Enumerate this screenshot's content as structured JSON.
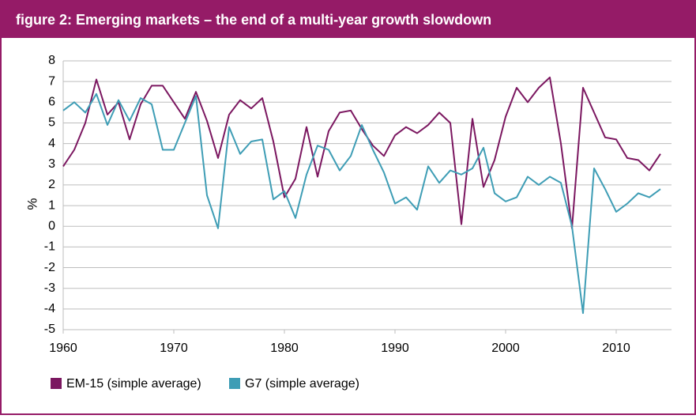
{
  "chart_data": {
    "type": "line",
    "title": "figure 2: Emerging markets – the end of a multi-year growth slowdown",
    "y_label": "%",
    "x": [
      1960,
      1961,
      1962,
      1963,
      1964,
      1965,
      1966,
      1967,
      1968,
      1969,
      1970,
      1971,
      1972,
      1973,
      1974,
      1975,
      1976,
      1977,
      1978,
      1979,
      1980,
      1981,
      1982,
      1983,
      1984,
      1985,
      1986,
      1987,
      1988,
      1989,
      1990,
      1991,
      1992,
      1993,
      1994,
      1995,
      1996,
      1997,
      1998,
      1999,
      2000,
      2001,
      2002,
      2003,
      2004,
      2005,
      2006,
      2007,
      2008,
      2009,
      2010,
      2011,
      2012,
      2013,
      2014
    ],
    "series": [
      {
        "name": "EM-15 (simple average)",
        "color": "#7b1760",
        "values": [
          2.9,
          3.7,
          5.0,
          7.1,
          5.4,
          6.0,
          4.2,
          5.9,
          6.8,
          6.8,
          6.0,
          5.2,
          6.5,
          5.1,
          3.3,
          5.4,
          6.1,
          5.7,
          6.2,
          4.1,
          1.4,
          2.3,
          4.8,
          2.4,
          4.6,
          5.5,
          5.6,
          4.7,
          3.9,
          3.4,
          4.4,
          4.8,
          4.5,
          4.9,
          5.5,
          5.0,
          0.1,
          5.2,
          1.9,
          3.2,
          5.3,
          6.7,
          6.0,
          6.7,
          7.2,
          4.0,
          -0.1,
          6.7,
          5.5,
          4.3,
          4.2,
          3.3,
          3.2,
          2.7,
          3.5
        ]
      },
      {
        "name": "G7 (simple average)",
        "color": "#3e9db5",
        "values": [
          5.6,
          6.0,
          5.5,
          6.4,
          4.9,
          6.1,
          5.1,
          6.2,
          5.9,
          3.7,
          3.7,
          5.0,
          6.3,
          1.5,
          -0.1,
          4.8,
          3.5,
          4.1,
          4.2,
          1.3,
          1.7,
          0.4,
          2.5,
          3.9,
          3.7,
          2.7,
          3.4,
          4.9,
          3.7,
          2.6,
          1.1,
          1.4,
          0.8,
          2.9,
          2.1,
          2.7,
          2.5,
          2.8,
          3.8,
          1.6,
          1.2,
          1.4,
          2.4,
          2.0,
          2.4,
          2.1,
          0.0,
          -4.2,
          2.8,
          1.8,
          0.7,
          1.1,
          1.6,
          1.4,
          1.8
        ]
      }
    ],
    "xlim": [
      1960,
      2015
    ],
    "xticks": [
      1960,
      1970,
      1980,
      1990,
      2000,
      2010
    ],
    "ylim": [
      -5,
      8
    ],
    "yticks": [
      -5,
      -4,
      -3,
      -2,
      -1,
      0,
      1,
      2,
      3,
      4,
      5,
      6,
      7,
      8
    ],
    "grid": true,
    "legend": "bottom"
  }
}
